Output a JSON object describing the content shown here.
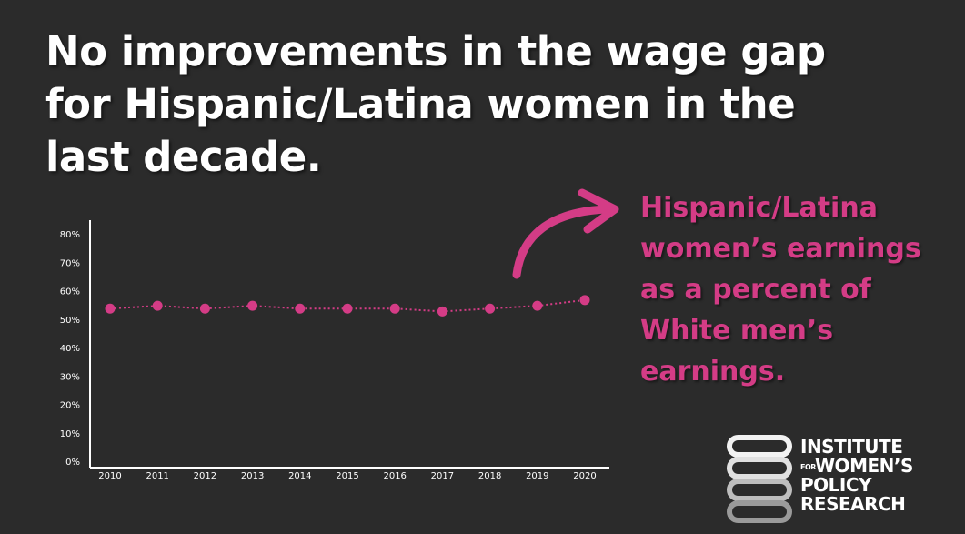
{
  "headline": {
    "line1": "No improvements in the wage gap",
    "line2": "for Hispanic/Latina women in the",
    "line3": "last decade."
  },
  "annotation": {
    "line1": "Hispanic/Latina",
    "line2": "women’s earnings",
    "line3": "as a percent of",
    "line4": "White men’s",
    "line5": "earnings."
  },
  "logo": {
    "line1": "INSTITUTE",
    "line2_for": "FOR",
    "line2": "WOMEN’S",
    "line3": "POLICY",
    "line4": "RESEARCH"
  },
  "colors": {
    "background": "#2b2b2b",
    "accent": "#d43c86",
    "text": "#ffffff"
  },
  "chart_data": {
    "type": "line",
    "title": "",
    "xlabel": "",
    "ylabel": "",
    "ylim": [
      0,
      80
    ],
    "yticks": [
      "0%",
      "10%",
      "20%",
      "30%",
      "40%",
      "50%",
      "60%",
      "70%",
      "80%"
    ],
    "categories": [
      "2010",
      "2011",
      "2012",
      "2013",
      "2014",
      "2015",
      "2016",
      "2017",
      "2018",
      "2019",
      "2020"
    ],
    "series": [
      {
        "values": [
          54,
          55,
          54,
          55,
          54,
          54,
          54,
          53,
          54,
          55,
          57
        ],
        "color": "#d43c86",
        "style": "dotted"
      }
    ],
    "grid": false
  }
}
